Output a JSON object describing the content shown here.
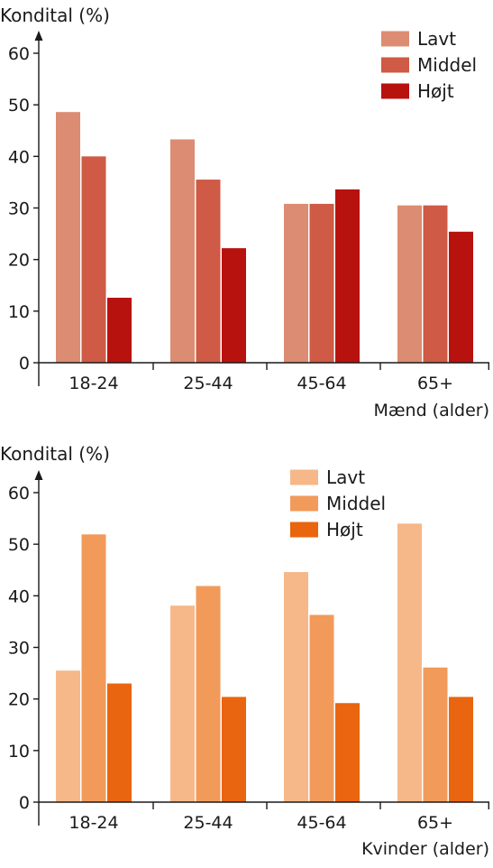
{
  "chart_data": [
    {
      "type": "bar",
      "title": "",
      "ylabel": "Kondital (%)",
      "xlabel": "Mænd (alder)",
      "categories": [
        "18-24",
        "25-44",
        "45-64",
        "65+"
      ],
      "ylim": [
        0,
        60
      ],
      "yticks": [
        0,
        10,
        20,
        30,
        40,
        50,
        60
      ],
      "legend_position": "top-right",
      "grid": false,
      "series": [
        {
          "name": "Lavt",
          "color": "#dc8c72",
          "values": [
            48.6,
            43.3,
            30.8,
            30.5
          ]
        },
        {
          "name": "Middel",
          "color": "#cf5a45",
          "values": [
            40.0,
            35.5,
            30.8,
            30.5
          ]
        },
        {
          "name": "Højt",
          "color": "#b8120f",
          "values": [
            12.6,
            22.2,
            33.6,
            25.4
          ]
        }
      ]
    },
    {
      "type": "bar",
      "title": "",
      "ylabel": "Kondital (%)",
      "xlabel": "Kvinder (alder)",
      "categories": [
        "18-24",
        "25-44",
        "45-64",
        "65+"
      ],
      "ylim": [
        0,
        60
      ],
      "yticks": [
        0,
        10,
        20,
        30,
        40,
        50,
        60
      ],
      "legend_position": "top-right",
      "grid": false,
      "series": [
        {
          "name": "Lavt",
          "color": "#f6b888",
          "values": [
            25.5,
            38.1,
            44.6,
            54.0
          ]
        },
        {
          "name": "Middel",
          "color": "#f29a5a",
          "values": [
            51.9,
            41.9,
            36.3,
            26.1
          ]
        },
        {
          "name": "Højt",
          "color": "#e9650f",
          "values": [
            23.0,
            20.4,
            19.2,
            20.4
          ]
        }
      ]
    }
  ]
}
